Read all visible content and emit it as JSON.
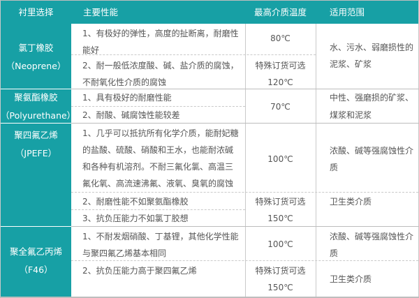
{
  "header": {
    "col1": "衬里选择",
    "col2": "主要性能",
    "col3": "最高介质温度",
    "col4": "适用范围"
  },
  "rows": [
    {
      "name": "氯丁橡胶",
      "alias": "（Neoprene）",
      "props": [
        "1、有极好的弹性，高度的扯断离，耐磨性",
        "能好",
        "2、耐一般低浓度酸、碱、盐介质的腐蚀，",
        "不耐氧化性介质的腐蚀"
      ],
      "temps": [
        "80℃",
        "特殊订货可选",
        "120℃"
      ],
      "ranges": [
        "水、污水、弱磨损性的",
        "泥浆、矿浆"
      ]
    },
    {
      "name": "聚氨酯橡胶",
      "alias": "（Polyurethane）",
      "props": [
        "1、具有极好的耐磨性能",
        "2、耐酸、碱腐蚀性能较差"
      ],
      "temps": [
        "70℃"
      ],
      "ranges": [
        "中性、强磨损的矿浆、",
        "煤浆和泥浆"
      ]
    },
    {
      "name": "聚四氟乙烯",
      "alias": "（JPEFE）",
      "props": [
        "1、几乎可以抵抗所有化学介质，能耐妃糖",
        "的盐酸、硫酸、硝酸和王水，也能耐浓碱",
        "和各种有机溶剂。不耐三氟化氯、高温三",
        "氟化氧、高流速沸氟、液氧、臭氧的腐蚀",
        "2、耐磨性能不如聚氨酯橡胶",
        "3、抗负压能力不如氯丁胶想"
      ],
      "temps": [
        "100℃",
        "特殊订货可选",
        "150℃"
      ],
      "ranges": [
        "浓酸、碱等强腐蚀性介",
        "质",
        "卫生类介质"
      ]
    },
    {
      "name": "聚全氟乙丙烯",
      "alias": "（F46）",
      "props": [
        "1、不耐发烟硝酸、丁基锂，其他化学性能",
        "与聚四氟乙烯基本相同",
        "2、抗负压能力高于聚四氟乙烯"
      ],
      "temps": [
        "100℃",
        "特殊订货可选",
        "150℃"
      ],
      "ranges": [
        "浓酸、碱等强腐蚀性介",
        "质",
        "卫生类介质"
      ]
    }
  ],
  "colors": {
    "accent": "#17a0a5",
    "border": "#c9c9c9",
    "text": "#555555"
  }
}
